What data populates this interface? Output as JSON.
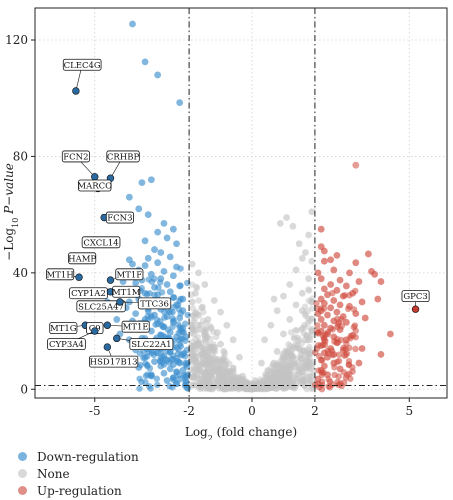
{
  "chart_data": {
    "type": "scatter",
    "title": "",
    "xlabel": "Log",
    "xlabel_sub": "2",
    "xlabel_rest": " (fold change)",
    "ylabel_prefix": "−Log",
    "ylabel_sub": "10",
    "ylabel_italic": " P−value",
    "xlim": [
      -6.9,
      6.2
    ],
    "ylim": [
      -3,
      131
    ],
    "xticks": [
      -5,
      -2,
      0,
      2,
      5
    ],
    "xtick_labels": [
      "-5",
      "-2",
      "0",
      "2",
      "5"
    ],
    "yticks": [
      0,
      40,
      80,
      120
    ],
    "ytick_labels": [
      "0",
      "40",
      "80",
      "120"
    ],
    "thresholds": {
      "x": [
        -2,
        2
      ],
      "y": 1.3
    },
    "grid": true,
    "legend_position": "bottom-left",
    "colors": {
      "down": "#3d8fce",
      "none": "#c4c4c4",
      "up": "#cf4a3e",
      "label_point": "#2a6aa0",
      "up_label_point": "#c03a30"
    },
    "legend": [
      {
        "name": "Down-regulation",
        "color": "#7ab3dd"
      },
      {
        "name": "None",
        "color": "#d9d9d9"
      },
      {
        "name": "Up-regulation",
        "color": "#df8f87"
      }
    ],
    "series": [
      {
        "name": "Down-regulation",
        "points": [
          [
            -3.8,
            125.5
          ],
          [
            -3.4,
            112.5
          ],
          [
            -3.0,
            108.0
          ],
          [
            -2.3,
            98.5
          ],
          [
            -3.2,
            72.0
          ],
          [
            -3.5,
            71.0
          ],
          [
            -3.9,
            66.0
          ],
          [
            -3.6,
            62.0
          ],
          [
            -3.3,
            60.0
          ],
          [
            -2.8,
            57.0
          ],
          [
            -2.5,
            55.0
          ],
          [
            -3.0,
            54.0
          ],
          [
            -2.7,
            52.0
          ],
          [
            -3.4,
            51.0
          ],
          [
            -2.4,
            50.0
          ],
          [
            -3.1,
            48.0
          ],
          [
            -2.9,
            47.0
          ],
          [
            -3.3,
            45.0
          ],
          [
            -2.6,
            45.5
          ],
          [
            -3.0,
            43.5
          ],
          [
            -2.4,
            42.0
          ],
          [
            -3.4,
            42.5
          ],
          [
            -3.6,
            41.0
          ],
          [
            -2.8,
            40.5
          ],
          [
            -3.2,
            39.5
          ],
          [
            -2.5,
            39.0
          ],
          [
            -2.9,
            38.0
          ],
          [
            -3.5,
            37.5
          ],
          [
            -3.7,
            36.5
          ],
          [
            -2.7,
            36.0
          ],
          [
            -3.1,
            35.0
          ],
          [
            -2.3,
            35.5
          ],
          [
            -3.8,
            34.0
          ],
          [
            -3.4,
            33.0
          ],
          [
            -2.6,
            33.5
          ],
          [
            -3.0,
            32.5
          ],
          [
            -2.5,
            31.5
          ],
          [
            -3.6,
            31.0
          ],
          [
            -3.9,
            30.0
          ],
          [
            -2.8,
            30.5
          ],
          [
            -3.2,
            29.5
          ],
          [
            -2.4,
            29.0
          ],
          [
            -4.0,
            28.0
          ],
          [
            -3.5,
            28.5
          ],
          [
            -2.9,
            27.5
          ],
          [
            -3.3,
            27.0
          ],
          [
            -2.6,
            26.5
          ],
          [
            -3.7,
            26.0
          ],
          [
            -3.1,
            25.5
          ],
          [
            -2.7,
            25.0
          ],
          [
            -2.3,
            24.5
          ],
          [
            -3.4,
            24.0
          ],
          [
            -3.8,
            23.5
          ],
          [
            -2.5,
            23.0
          ],
          [
            -3.0,
            22.5
          ],
          [
            -2.8,
            21.5
          ],
          [
            -3.6,
            21.0
          ],
          [
            -2.2,
            21.0
          ],
          [
            -3.2,
            20.0
          ],
          [
            -2.6,
            19.5
          ],
          [
            -4.2,
            19.0
          ],
          [
            -2.9,
            18.5
          ],
          [
            -2.4,
            18.0
          ],
          [
            -3.5,
            17.5
          ],
          [
            -3.9,
            17.0
          ],
          [
            -2.7,
            16.5
          ],
          [
            -3.1,
            16.0
          ],
          [
            -2.3,
            15.5
          ],
          [
            -3.3,
            15.0
          ],
          [
            -2.5,
            14.5
          ],
          [
            -2.9,
            14.0
          ],
          [
            -3.7,
            13.5
          ],
          [
            -2.6,
            13.0
          ],
          [
            -3.0,
            12.5
          ],
          [
            -2.2,
            12.0
          ],
          [
            -2.8,
            11.5
          ],
          [
            -3.4,
            11.0
          ],
          [
            -2.4,
            10.5
          ],
          [
            -2.7,
            10.0
          ],
          [
            -3.1,
            9.5
          ],
          [
            -2.3,
            9.0
          ],
          [
            -2.5,
            8.5
          ],
          [
            -2.9,
            8.0
          ],
          [
            -3.6,
            7.5
          ],
          [
            -2.6,
            7.0
          ],
          [
            -2.2,
            6.5
          ],
          [
            -2.4,
            6.0
          ],
          [
            -2.8,
            5.5
          ],
          [
            -3.2,
            5.0
          ],
          [
            -2.1,
            4.5
          ],
          [
            -2.5,
            4.0
          ],
          [
            -2.3,
            3.5
          ],
          [
            -2.7,
            3.0
          ],
          [
            -2.1,
            2.5
          ],
          [
            -2.4,
            2.0
          ],
          [
            -3.8,
            43.0
          ],
          [
            -4.3,
            24.0
          ],
          [
            -4.6,
            30.0
          ],
          [
            -4.1,
            37.0
          ],
          [
            -3.9,
            44.5
          ],
          [
            -4.4,
            33.5
          ],
          [
            -2.2,
            27.0
          ],
          [
            -2.1,
            18.0
          ],
          [
            -2.2,
            31.0
          ],
          [
            -2.1,
            9.0
          ]
        ]
      },
      {
        "name": "None",
        "points": [
          [
            -1.9,
            43.0
          ],
          [
            -1.7,
            40.0
          ],
          [
            -1.5,
            36.0
          ],
          [
            -1.8,
            33.0
          ],
          [
            -1.2,
            30.5
          ],
          [
            -1.6,
            28.0
          ],
          [
            -1.0,
            26.5
          ],
          [
            -1.4,
            24.0
          ],
          [
            -0.8,
            22.0
          ],
          [
            -1.9,
            21.0
          ],
          [
            -1.1,
            19.5
          ],
          [
            -0.6,
            17.0
          ],
          [
            -1.7,
            16.0
          ],
          [
            -1.3,
            14.5
          ],
          [
            -0.9,
            13.0
          ],
          [
            -0.4,
            11.0
          ],
          [
            -1.8,
            10.0
          ],
          [
            -1.5,
            8.5
          ],
          [
            -1.0,
            7.5
          ],
          [
            -0.7,
            6.0
          ],
          [
            -0.3,
            4.5
          ],
          [
            -1.9,
            4.0
          ],
          [
            -1.4,
            3.0
          ],
          [
            -1.1,
            2.0
          ],
          [
            -0.8,
            1.2
          ],
          [
            -0.5,
            0.6
          ],
          [
            -0.2,
            0.3
          ],
          [
            0.0,
            0.2
          ],
          [
            0.2,
            0.5
          ],
          [
            0.4,
            1.5
          ],
          [
            0.6,
            3.0
          ],
          [
            0.9,
            5.0
          ],
          [
            1.1,
            8.0
          ],
          [
            1.3,
            11.0
          ],
          [
            1.5,
            14.0
          ],
          [
            1.7,
            17.0
          ],
          [
            1.9,
            20.0
          ],
          [
            0.8,
            13.0
          ],
          [
            1.0,
            19.0
          ],
          [
            1.2,
            24.0
          ],
          [
            1.4,
            29.0
          ],
          [
            1.6,
            33.0
          ],
          [
            1.8,
            38.0
          ],
          [
            1.9,
            44.0
          ],
          [
            1.7,
            47.0
          ],
          [
            1.5,
            50.0
          ],
          [
            1.8,
            53.0
          ],
          [
            1.3,
            56.0
          ],
          [
            1.9,
            61.0
          ],
          [
            1.1,
            59.0
          ],
          [
            0.9,
            57.0
          ],
          [
            1.6,
            27.0
          ],
          [
            1.8,
            12.0
          ],
          [
            0.7,
            9.0
          ],
          [
            0.5,
            6.5
          ],
          [
            1.0,
            3.5
          ],
          [
            1.6,
            6.0
          ],
          [
            1.9,
            8.0
          ],
          [
            -1.3,
            5.5
          ],
          [
            -1.6,
            12.0
          ],
          [
            -1.9,
            15.0
          ],
          [
            -1.2,
            9.0
          ],
          [
            -0.6,
            3.0
          ],
          [
            -1.6,
            1.5
          ],
          [
            -1.8,
            26.0
          ],
          [
            -1.3,
            21.0
          ],
          [
            -1.9,
            30.0
          ],
          [
            -1.7,
            22.0
          ],
          [
            -1.0,
            15.5
          ],
          [
            -1.5,
            18.5
          ],
          [
            1.2,
            36.0
          ],
          [
            1.4,
            41.0
          ],
          [
            1.6,
            45.0
          ],
          [
            1.0,
            32.0
          ],
          [
            0.8,
            27.0
          ],
          [
            0.6,
            22.0
          ],
          [
            0.4,
            17.0
          ],
          [
            0.7,
            31.0
          ],
          [
            0.3,
            9.0
          ],
          [
            0.1,
            3.0
          ],
          [
            -0.1,
            2.0
          ],
          [
            1.9,
            30.0
          ],
          [
            1.9,
            2.5
          ],
          [
            -1.9,
            1.5
          ],
          [
            1.7,
            3.0
          ],
          [
            1.3,
            1.5
          ]
        ]
      },
      {
        "name": "Up-regulation",
        "points": [
          [
            2.3,
            44.0
          ],
          [
            2.6,
            41.0
          ],
          [
            3.1,
            40.0
          ],
          [
            2.2,
            38.0
          ],
          [
            2.8,
            37.5
          ],
          [
            3.4,
            37.0
          ],
          [
            2.5,
            36.0
          ],
          [
            3.0,
            35.5
          ],
          [
            2.3,
            34.5
          ],
          [
            2.7,
            34.0
          ],
          [
            3.2,
            33.0
          ],
          [
            2.4,
            32.5
          ],
          [
            2.9,
            32.0
          ],
          [
            2.2,
            31.0
          ],
          [
            2.6,
            30.5
          ],
          [
            3.5,
            30.0
          ],
          [
            2.3,
            29.5
          ],
          [
            2.8,
            29.0
          ],
          [
            3.1,
            28.5
          ],
          [
            2.5,
            28.0
          ],
          [
            2.2,
            27.0
          ],
          [
            2.7,
            26.5
          ],
          [
            3.3,
            26.0
          ],
          [
            2.4,
            25.5
          ],
          [
            2.9,
            25.0
          ],
          [
            2.2,
            24.0
          ],
          [
            2.6,
            23.5
          ],
          [
            3.0,
            23.0
          ],
          [
            2.3,
            22.0
          ],
          [
            2.5,
            21.0
          ],
          [
            2.8,
            20.5
          ],
          [
            2.2,
            20.0
          ],
          [
            2.4,
            19.0
          ],
          [
            3.2,
            18.5
          ],
          [
            2.6,
            18.0
          ],
          [
            2.3,
            17.0
          ],
          [
            2.7,
            16.0
          ],
          [
            2.2,
            15.0
          ],
          [
            2.5,
            14.0
          ],
          [
            2.9,
            13.5
          ],
          [
            2.3,
            12.5
          ],
          [
            2.4,
            11.0
          ],
          [
            2.2,
            10.0
          ],
          [
            2.6,
            9.0
          ],
          [
            2.3,
            8.0
          ],
          [
            2.2,
            6.5
          ],
          [
            2.4,
            5.0
          ],
          [
            2.1,
            3.5
          ],
          [
            2.5,
            44.5
          ],
          [
            2.2,
            49.0
          ],
          [
            3.8,
            40.5
          ],
          [
            4.0,
            31.0
          ],
          [
            4.1,
            37.0
          ],
          [
            3.6,
            24.5
          ],
          [
            4.4,
            19.0
          ],
          [
            3.9,
            39.5
          ],
          [
            3.3,
            43.5
          ],
          [
            2.7,
            46.0
          ],
          [
            3.5,
            14.0
          ],
          [
            4.1,
            12.0
          ],
          [
            2.3,
            47.5
          ],
          [
            3.0,
            17.0
          ],
          [
            2.1,
            26.0
          ],
          [
            2.1,
            40.0
          ],
          [
            2.2,
            55.0
          ],
          [
            3.7,
            46.5
          ],
          [
            2.6,
            12.0
          ],
          [
            3.4,
            9.0
          ],
          [
            2.8,
            7.0
          ],
          [
            2.1,
            1.8
          ]
        ]
      }
    ],
    "extra_points": [
      {
        "x": 3.3,
        "y": 77.0,
        "series": "Up-regulation"
      }
    ],
    "labeled_genes": [
      {
        "gene": "CLEC4G",
        "x": -5.6,
        "y": 102.5,
        "lx": -5.4,
        "ly": 111.5,
        "color": "down"
      },
      {
        "gene": "FCN2",
        "x": -5.0,
        "y": 73.0,
        "lx": -5.6,
        "ly": 80.0,
        "color": "down"
      },
      {
        "gene": "CRHBP",
        "x": -4.5,
        "y": 72.5,
        "lx": -4.1,
        "ly": 80.0,
        "color": "down"
      },
      {
        "gene": "MARCO",
        "x": -4.9,
        "y": 69.0,
        "lx": -5.0,
        "ly": 70.0,
        "color": "down"
      },
      {
        "gene": "FCN3",
        "x": -4.7,
        "y": 59.0,
        "lx": -4.2,
        "ly": 59.0,
        "color": "down"
      },
      {
        "gene": "CXCL14",
        "x": -4.6,
        "y": 50.5,
        "lx": -4.8,
        "ly": 50.5,
        "color": "down"
      },
      {
        "gene": "HAMP",
        "x": -5.2,
        "y": 44.5,
        "lx": -5.4,
        "ly": 45.0,
        "color": "down"
      },
      {
        "gene": "MT1H",
        "x": -5.5,
        "y": 38.5,
        "lx": -6.1,
        "ly": 39.5,
        "color": "down"
      },
      {
        "gene": "MT1F",
        "x": -4.5,
        "y": 37.5,
        "lx": -3.9,
        "ly": 39.5,
        "color": "down"
      },
      {
        "gene": "CYP1A2",
        "x": -5.5,
        "y": 33.5,
        "lx": -5.2,
        "ly": 33.0,
        "color": "down"
      },
      {
        "gene": "MT1M",
        "x": -4.5,
        "y": 33.5,
        "lx": -4.0,
        "ly": 33.5,
        "color": "down"
      },
      {
        "gene": "SLC25A47",
        "x": -4.6,
        "y": 28.5,
        "lx": -4.8,
        "ly": 28.5,
        "color": "down"
      },
      {
        "gene": "TTC36",
        "x": -4.2,
        "y": 30.0,
        "lx": -3.1,
        "ly": 29.5,
        "color": "down"
      },
      {
        "gene": "MT1G",
        "x": -5.3,
        "y": 22.0,
        "lx": -6.0,
        "ly": 21.0,
        "color": "down"
      },
      {
        "gene": "C9",
        "x": -5.0,
        "y": 20.0,
        "lx": -5.0,
        "ly": 21.0,
        "color": "down"
      },
      {
        "gene": "MT1E",
        "x": -4.6,
        "y": 22.0,
        "lx": -3.7,
        "ly": 21.5,
        "color": "down"
      },
      {
        "gene": "CYP3A4",
        "x": -5.0,
        "y": 20.0,
        "lx": -5.9,
        "ly": 15.5,
        "color": "down"
      },
      {
        "gene": "SLC22A1",
        "x": -4.3,
        "y": 17.5,
        "lx": -3.2,
        "ly": 15.5,
        "color": "down"
      },
      {
        "gene": "HSD17B13",
        "x": -4.6,
        "y": 14.5,
        "lx": -4.4,
        "ly": 9.5,
        "color": "down"
      },
      {
        "gene": "GPC3",
        "x": 5.2,
        "y": 27.5,
        "lx": 5.2,
        "ly": 32.0,
        "color": "up"
      }
    ]
  }
}
